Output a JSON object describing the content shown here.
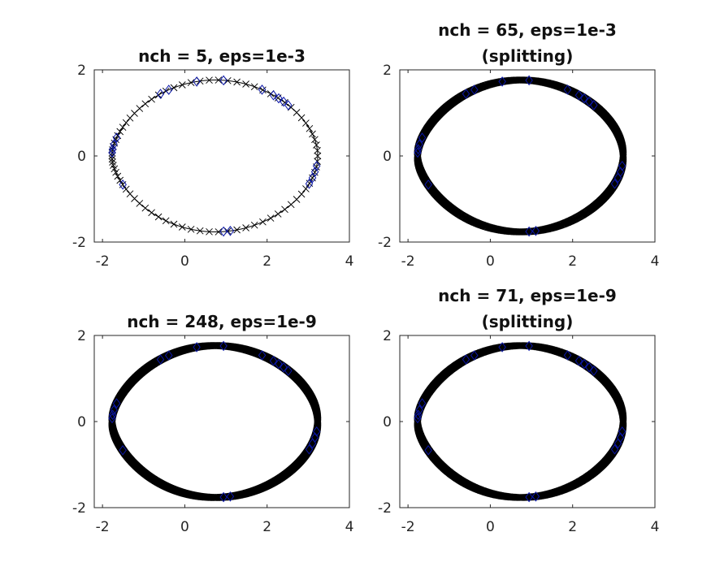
{
  "chart_data": [
    {
      "type": "scatter",
      "title": [
        "nch = 5, eps=1e-3"
      ],
      "xlim": [
        -2.2,
        4
      ],
      "ylim": [
        -2,
        2
      ],
      "xticks": [
        "-2",
        "0",
        "2",
        "4"
      ],
      "yticks": [
        "-2",
        "0",
        "2"
      ],
      "grid": false,
      "n_points": 80,
      "x_marker_color": "#000000",
      "diamond_color": "#0b17a8",
      "diamond_t": [
        0.26,
        0.28,
        0.3,
        0.32,
        0.36,
        0.48,
        0.56,
        0.65,
        0.68,
        0.95,
        1.0,
        1.04,
        1.07,
        1.32,
        1.72,
        1.74,
        2.06,
        2.09,
        2.12,
        2.15
      ]
    },
    {
      "type": "scatter",
      "title": [
        "nch = 65, eps=1e-3",
        "(splitting)"
      ],
      "xlim": [
        -2.2,
        4
      ],
      "ylim": [
        -2,
        2
      ],
      "xticks": [
        "-2",
        "0",
        "2",
        "4"
      ],
      "yticks": [
        "-2",
        "0",
        "2"
      ],
      "grid": false,
      "n_points": 900,
      "x_marker_color": "#000000",
      "diamond_color": "#0b17a8",
      "diamond_t": [
        0.26,
        0.28,
        0.3,
        0.32,
        0.36,
        0.48,
        0.56,
        0.65,
        0.68,
        0.95,
        1.0,
        1.04,
        1.07,
        1.32,
        1.72,
        1.74,
        2.06,
        2.09,
        2.12,
        2.15
      ]
    },
    {
      "type": "scatter",
      "title": [
        "nch = 248, eps=1e-9"
      ],
      "xlim": [
        -2.2,
        4
      ],
      "ylim": [
        -2,
        2
      ],
      "xticks": [
        "-2",
        "0",
        "2",
        "4"
      ],
      "yticks": [
        "-2",
        "0",
        "2"
      ],
      "grid": false,
      "n_points": 2200,
      "x_marker_color": "#000000",
      "diamond_color": "#0b17a8",
      "diamond_t": [
        0.26,
        0.28,
        0.3,
        0.32,
        0.36,
        0.48,
        0.56,
        0.65,
        0.68,
        0.95,
        1.0,
        1.04,
        1.07,
        1.32,
        1.72,
        1.74,
        2.06,
        2.09,
        2.12,
        2.15
      ]
    },
    {
      "type": "scatter",
      "title": [
        "nch = 71, eps=1e-9",
        "(splitting)"
      ],
      "xlim": [
        -2.2,
        4
      ],
      "ylim": [
        -2,
        2
      ],
      "xticks": [
        "-2",
        "0",
        "2",
        "4"
      ],
      "yticks": [
        "-2",
        "0",
        "2"
      ],
      "grid": false,
      "n_points": 1000,
      "x_marker_color": "#000000",
      "diamond_color": "#0b17a8",
      "diamond_t": [
        0.26,
        0.28,
        0.3,
        0.32,
        0.36,
        0.48,
        0.56,
        0.65,
        0.68,
        0.95,
        1.0,
        1.04,
        1.07,
        1.32,
        1.72,
        1.74,
        2.06,
        2.09,
        2.12,
        2.15
      ]
    }
  ]
}
